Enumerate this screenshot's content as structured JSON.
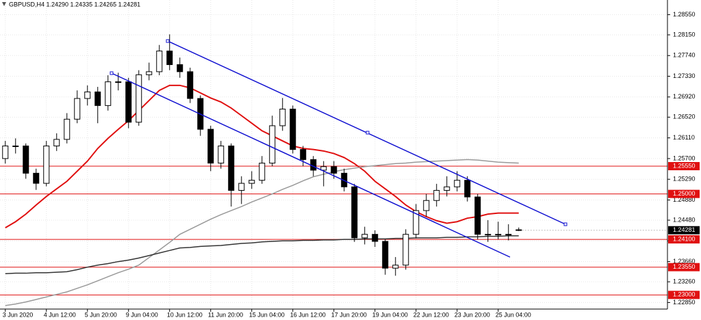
{
  "chart_data": {
    "type": "candlestick",
    "title": "GBPUSD,H4  1.24290 1.24335 1.24265 1.24281",
    "categories": [
      "3 Jun 2020",
      null,
      null,
      null,
      "4 Jun 12:00",
      null,
      null,
      null,
      "5 Jun 20:00",
      null,
      null,
      null,
      "9 Jun 04:00",
      null,
      null,
      null,
      "10 Jun 12:00",
      null,
      null,
      null,
      "11 Jun 20:00",
      null,
      null,
      null,
      "15 Jun 04:00",
      null,
      null,
      null,
      "16 Jun 12:00",
      null,
      null,
      null,
      "17 Jun 20:00",
      null,
      null,
      null,
      "19 Jun 04:00",
      null,
      null,
      null,
      "22 Jun 12:00",
      null,
      null,
      null,
      "23 Jun 20:00",
      null,
      null,
      null,
      "25 Jun 04:00",
      null,
      null
    ],
    "open": [
      1.257,
      1.2595,
      1.2595,
      1.2541,
      1.2521,
      1.2595,
      1.2608,
      1.2648,
      1.2689,
      1.2702,
      1.2675,
      1.2722,
      1.2722,
      1.2642,
      1.2736,
      1.2742,
      1.2783,
      1.2756,
      1.2742,
      1.2689,
      1.2628,
      1.2561,
      1.2595,
      1.2507,
      1.2521,
      1.2527,
      1.2561,
      1.2635,
      1.2668,
      1.2588,
      1.2568,
      1.2547,
      1.2554,
      1.2541,
      1.2514,
      1.2413,
      1.242,
      1.2406,
      1.2353,
      1.2359,
      1.242,
      1.2467,
      1.2487,
      1.2507,
      1.2514,
      1.2527,
      1.2494,
      1.242,
      1.242,
      1.242,
      1.2429
    ],
    "high": [
      1.2605,
      1.261,
      1.26,
      1.255,
      1.2605,
      1.262,
      1.266,
      1.2705,
      1.2715,
      1.2712,
      1.2735,
      1.274,
      1.273,
      1.2745,
      1.276,
      1.2795,
      1.2816,
      1.277,
      1.275,
      1.2695,
      1.2635,
      1.2605,
      1.26,
      1.2535,
      1.2545,
      1.2575,
      1.2655,
      1.269,
      1.2675,
      1.2595,
      1.2575,
      1.2565,
      1.2565,
      1.255,
      1.252,
      1.2435,
      1.2428,
      1.241,
      1.2375,
      1.243,
      1.248,
      1.25,
      1.252,
      1.2535,
      1.2545,
      1.2535,
      1.25,
      1.2448,
      1.2445,
      1.244,
      1.24335
    ],
    "low": [
      1.256,
      1.258,
      1.253,
      1.2508,
      1.2515,
      1.2585,
      1.26,
      1.264,
      1.2675,
      1.264,
      1.2665,
      1.2705,
      1.263,
      1.2635,
      1.2725,
      1.2735,
      1.2745,
      1.273,
      1.268,
      1.2615,
      1.2545,
      1.255,
      1.2475,
      1.248,
      1.251,
      1.252,
      1.2555,
      1.2625,
      1.258,
      1.2555,
      1.2535,
      1.2515,
      1.253,
      1.2505,
      1.2405,
      1.24,
      1.2395,
      1.234,
      1.2338,
      1.235,
      1.2412,
      1.2455,
      1.2475,
      1.2495,
      1.2505,
      1.2485,
      1.241,
      1.2405,
      1.241,
      1.2408,
      1.24265
    ],
    "close": [
      1.2595,
      1.2595,
      1.2541,
      1.2521,
      1.2595,
      1.2608,
      1.2648,
      1.2689,
      1.2702,
      1.2675,
      1.2722,
      1.2722,
      1.2642,
      1.2736,
      1.2742,
      1.2783,
      1.2756,
      1.2742,
      1.2689,
      1.2628,
      1.2561,
      1.2595,
      1.2507,
      1.2521,
      1.2527,
      1.2561,
      1.2635,
      1.2668,
      1.2588,
      1.2568,
      1.2547,
      1.2554,
      1.2541,
      1.2514,
      1.2413,
      1.242,
      1.2406,
      1.2353,
      1.2359,
      1.242,
      1.2467,
      1.2487,
      1.2507,
      1.2514,
      1.2527,
      1.2494,
      1.242,
      1.242,
      1.242,
      1.242,
      1.24281
    ],
    "up_color": "#ffffff",
    "down_color": "#000000",
    "lines": [
      {
        "color": "#e01010",
        "values": [
          1.2433,
          1.2445,
          1.246,
          1.2478,
          1.2495,
          1.251,
          1.2525,
          1.2545,
          1.2565,
          1.259,
          1.261,
          1.2628,
          1.2645,
          1.2665,
          1.2685,
          1.2705,
          1.2715,
          1.2715,
          1.271,
          1.27,
          1.269,
          1.2682,
          1.267,
          1.2655,
          1.264,
          1.2625,
          1.2615,
          1.2605,
          1.2595,
          1.259,
          1.2588,
          1.2585,
          1.258,
          1.2572,
          1.256,
          1.2545,
          1.2525,
          1.251,
          1.2495,
          1.2478,
          1.2465,
          1.2455,
          1.2447,
          1.2442,
          1.2445,
          1.2452,
          1.2455,
          1.246,
          1.2462,
          1.2462,
          1.2462
        ]
      },
      {
        "color": "#999999",
        "values": [
          1.2279,
          1.2282,
          1.2286,
          1.2291,
          1.2296,
          1.2301,
          1.2306,
          1.2313,
          1.232,
          1.2328,
          1.2336,
          1.2344,
          1.2351,
          1.2359,
          1.2374,
          1.2389,
          1.2404,
          1.242,
          1.243,
          1.244,
          1.245,
          1.2459,
          1.2467,
          1.2475,
          1.2484,
          1.2492,
          1.25,
          1.2509,
          1.2517,
          1.2526,
          1.2534,
          1.2539,
          1.2544,
          1.2548,
          1.2551,
          1.2554,
          1.2556,
          1.2558,
          1.256,
          1.2561,
          1.2563,
          1.2564,
          1.2565,
          1.2566,
          1.2567,
          1.2568,
          1.2567,
          1.2565,
          1.2563,
          1.2562,
          1.2561
        ]
      },
      {
        "color": "#333333",
        "values": [
          1.2342,
          1.2343,
          1.2343,
          1.2344,
          1.2344,
          1.2345,
          1.2346,
          1.235,
          1.2355,
          1.2359,
          1.2362,
          1.2366,
          1.2369,
          1.2373,
          1.2378,
          1.2383,
          1.2388,
          1.2393,
          1.2394,
          1.2396,
          1.2397,
          1.2398,
          1.24,
          1.2402,
          1.2403,
          1.2405,
          1.2406,
          1.2407,
          1.2407,
          1.2408,
          1.2408,
          1.2409,
          1.2409,
          1.241,
          1.241,
          1.2411,
          1.2411,
          1.2411,
          1.2412,
          1.2412,
          1.2413,
          1.2413,
          1.2413,
          1.2414,
          1.2414,
          1.2415,
          1.2415,
          1.2416,
          1.2416,
          1.2417,
          1.2417
        ]
      }
    ],
    "levels": [
      {
        "value": 1.2555,
        "label": "1.25550",
        "color": "#e01010"
      },
      {
        "value": 1.25,
        "label": "1.25000",
        "color": "#e01010"
      },
      {
        "value": 1.241,
        "label": "1.24100",
        "color": "#e01010"
      },
      {
        "value": 1.2355,
        "label": "1.23550",
        "color": "#e01010"
      },
      {
        "value": 1.23,
        "label": "1.23000",
        "color": "#e01010"
      }
    ],
    "ylim": [
      1.2272,
      1.2884
    ],
    "yticks": [
      {
        "value": 1.2855,
        "label": "1.28550"
      },
      {
        "value": 1.2815,
        "label": "1.28150"
      },
      {
        "value": 1.2774,
        "label": "1.27740"
      },
      {
        "value": 1.2733,
        "label": "1.27330"
      },
      {
        "value": 1.2692,
        "label": "1.26920"
      },
      {
        "value": 1.2652,
        "label": "1.26520"
      },
      {
        "value": 1.2611,
        "label": "1.26110"
      },
      {
        "value": 1.257,
        "label": "1.25700"
      },
      {
        "value": 1.2529,
        "label": "1.25290"
      },
      {
        "value": 1.2488,
        "label": "1.24880"
      },
      {
        "value": 1.2448,
        "label": "1.24480"
      },
      {
        "value": 1.2407,
        "label": "1.24070"
      },
      {
        "value": 1.2366,
        "label": "1.23660"
      },
      {
        "value": 1.2326,
        "label": "1.23260"
      },
      {
        "value": 1.2285,
        "label": "1.22850"
      }
    ],
    "grid": true
  }
}
